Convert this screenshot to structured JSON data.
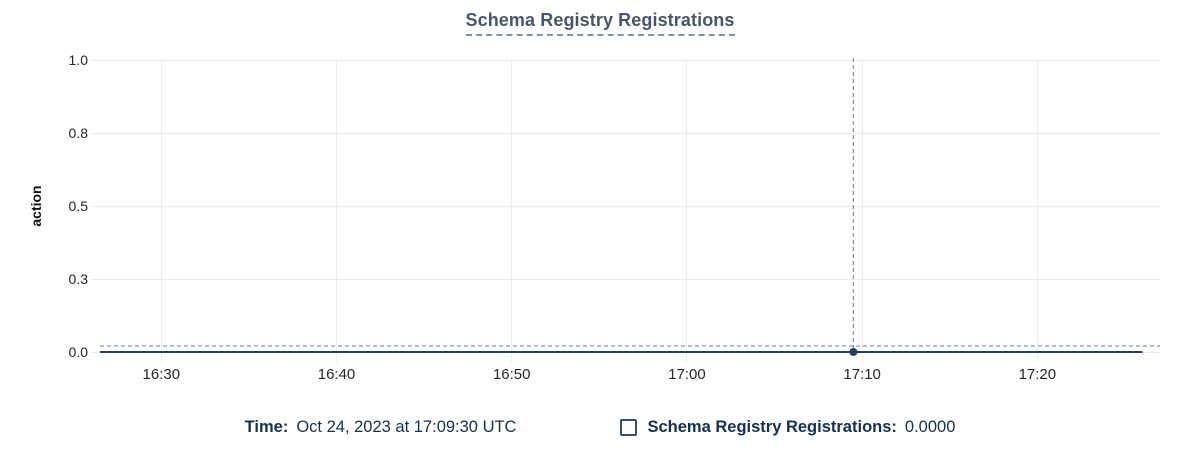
{
  "chart_data": {
    "type": "line",
    "title": "Schema Registry Registrations",
    "xlabel": "",
    "ylabel": "action",
    "ylim": [
      0,
      1
    ],
    "grid": true,
    "y_ticks": [
      {
        "label": "1.0",
        "pos": 1.0
      },
      {
        "label": "0.8",
        "pos": 0.75
      },
      {
        "label": "0.5",
        "pos": 0.5
      },
      {
        "label": "0.3",
        "pos": 0.25
      },
      {
        "label": "0.0",
        "pos": 0.0
      }
    ],
    "x_domain": [
      "16:26:30",
      "17:27:00"
    ],
    "x_ticks": [
      "16:30",
      "16:40",
      "16:50",
      "17:00",
      "17:10",
      "17:20"
    ],
    "series": [
      {
        "name": "Schema Registry Registrations",
        "points": [
          {
            "t": "16:26:30",
            "v": 0
          },
          {
            "t": "17:26:00",
            "v": 0
          }
        ]
      }
    ],
    "highlight": {
      "t": "17:09:30",
      "v": 0,
      "value_label": "0.0000"
    }
  },
  "legend": {
    "time_label": "Time:",
    "time_value": "Oct 24, 2023 at 17:09:30 UTC",
    "series_label": "Schema Registry Registrations:",
    "series_value": "0.0000",
    "checkbox_checked": false
  },
  "colors": {
    "series": "#24405e",
    "crosshair": "#8296ad",
    "grid": "#ececec",
    "title": "#47566e",
    "legend_text": "#123056",
    "axis_text": "#262626"
  }
}
